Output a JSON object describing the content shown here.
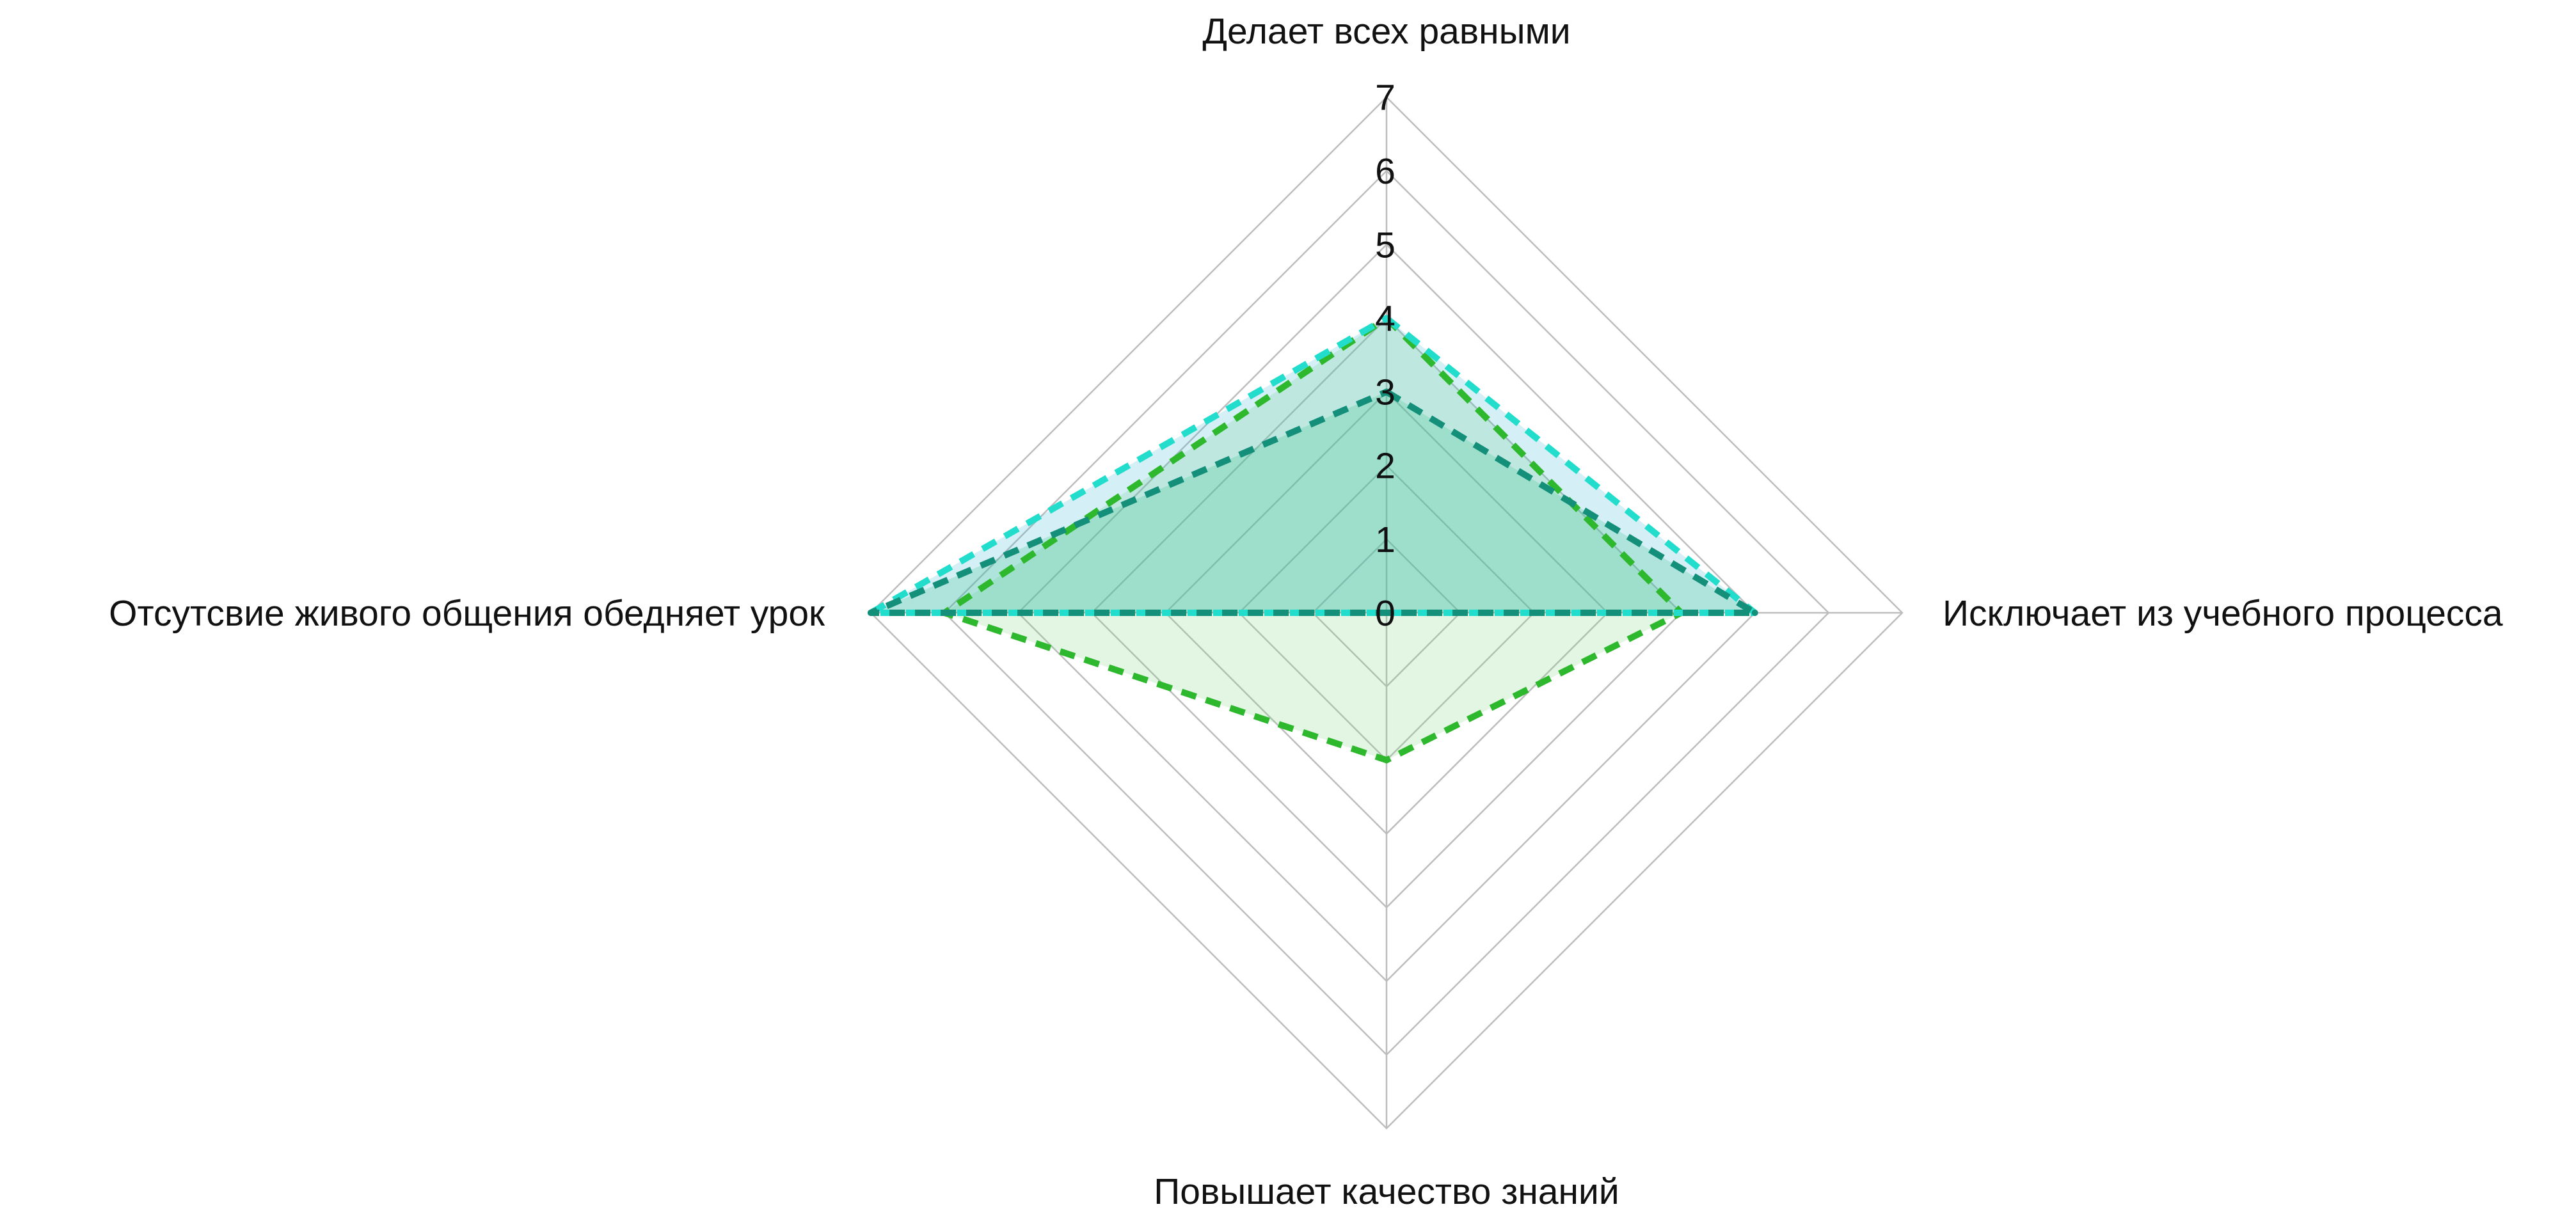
{
  "chart_data": {
    "type": "radar",
    "title": "",
    "axes": [
      "Делает всех равными",
      "Исключает из учебного процесса",
      "Повышает качество знаний",
      "Отсутсвие живого общения обедняет урок"
    ],
    "ticks": [
      "0",
      "1",
      "2",
      "3",
      "4",
      "5",
      "6",
      "7"
    ],
    "range": [
      0,
      7
    ],
    "grid": true,
    "legend": "none",
    "series": [
      {
        "values": [
          4,
          4,
          2,
          6
        ],
        "stroke": "#2eb82e",
        "fill": "#7fd67f",
        "fill_opacity": 0.22
      },
      {
        "values": [
          4,
          5,
          0,
          7
        ],
        "stroke": "#22ddcc",
        "fill": "#3db8d0",
        "fill_opacity": 0.22
      },
      {
        "values": [
          3,
          5,
          0,
          7
        ],
        "stroke": "#138f7a",
        "fill": "#2fbf8a",
        "fill_opacity": 0.22
      }
    ]
  }
}
